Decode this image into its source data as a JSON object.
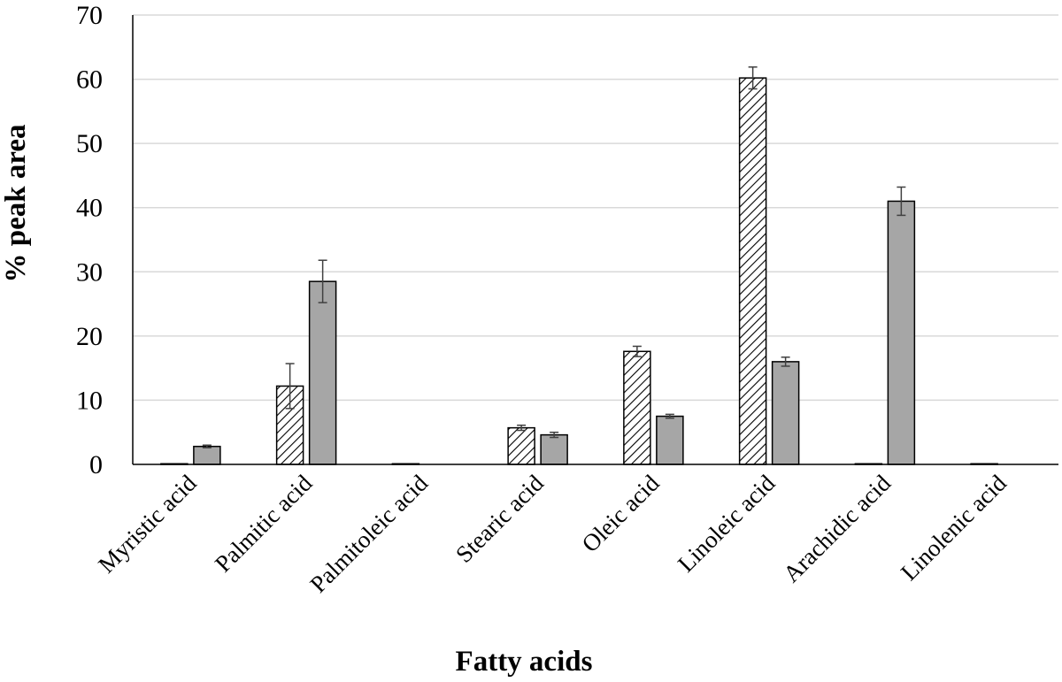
{
  "chart_data": {
    "type": "bar",
    "xlabel": "Fatty acids",
    "ylabel": "% peak area",
    "ylim": [
      0,
      70
    ],
    "yticks": [
      "0",
      "10",
      "20",
      "30",
      "40",
      "50",
      "60",
      "70"
    ],
    "grid": true,
    "categories": [
      "Myristic acid",
      "Palmitic acid",
      "Palmitoleic acid",
      "Stearic acid",
      "Oleic acid",
      "Linoleic acid",
      "Arachidic acid",
      "Linolenic acid"
    ],
    "series": [
      {
        "pattern": "hatched",
        "color": "#ffffff",
        "values": [
          0.1,
          12.2,
          0.1,
          5.7,
          17.6,
          60.2,
          0.1,
          0.1
        ],
        "errors": [
          0.0,
          3.5,
          0.0,
          0.4,
          0.8,
          1.7,
          0.0,
          0.0
        ]
      },
      {
        "pattern": "solid",
        "color": "#a6a6a6",
        "values": [
          2.8,
          28.5,
          0,
          4.6,
          7.5,
          16.0,
          41.0,
          0
        ],
        "errors": [
          0.2,
          3.3,
          0,
          0.4,
          0.3,
          0.7,
          2.2,
          0
        ]
      }
    ]
  }
}
